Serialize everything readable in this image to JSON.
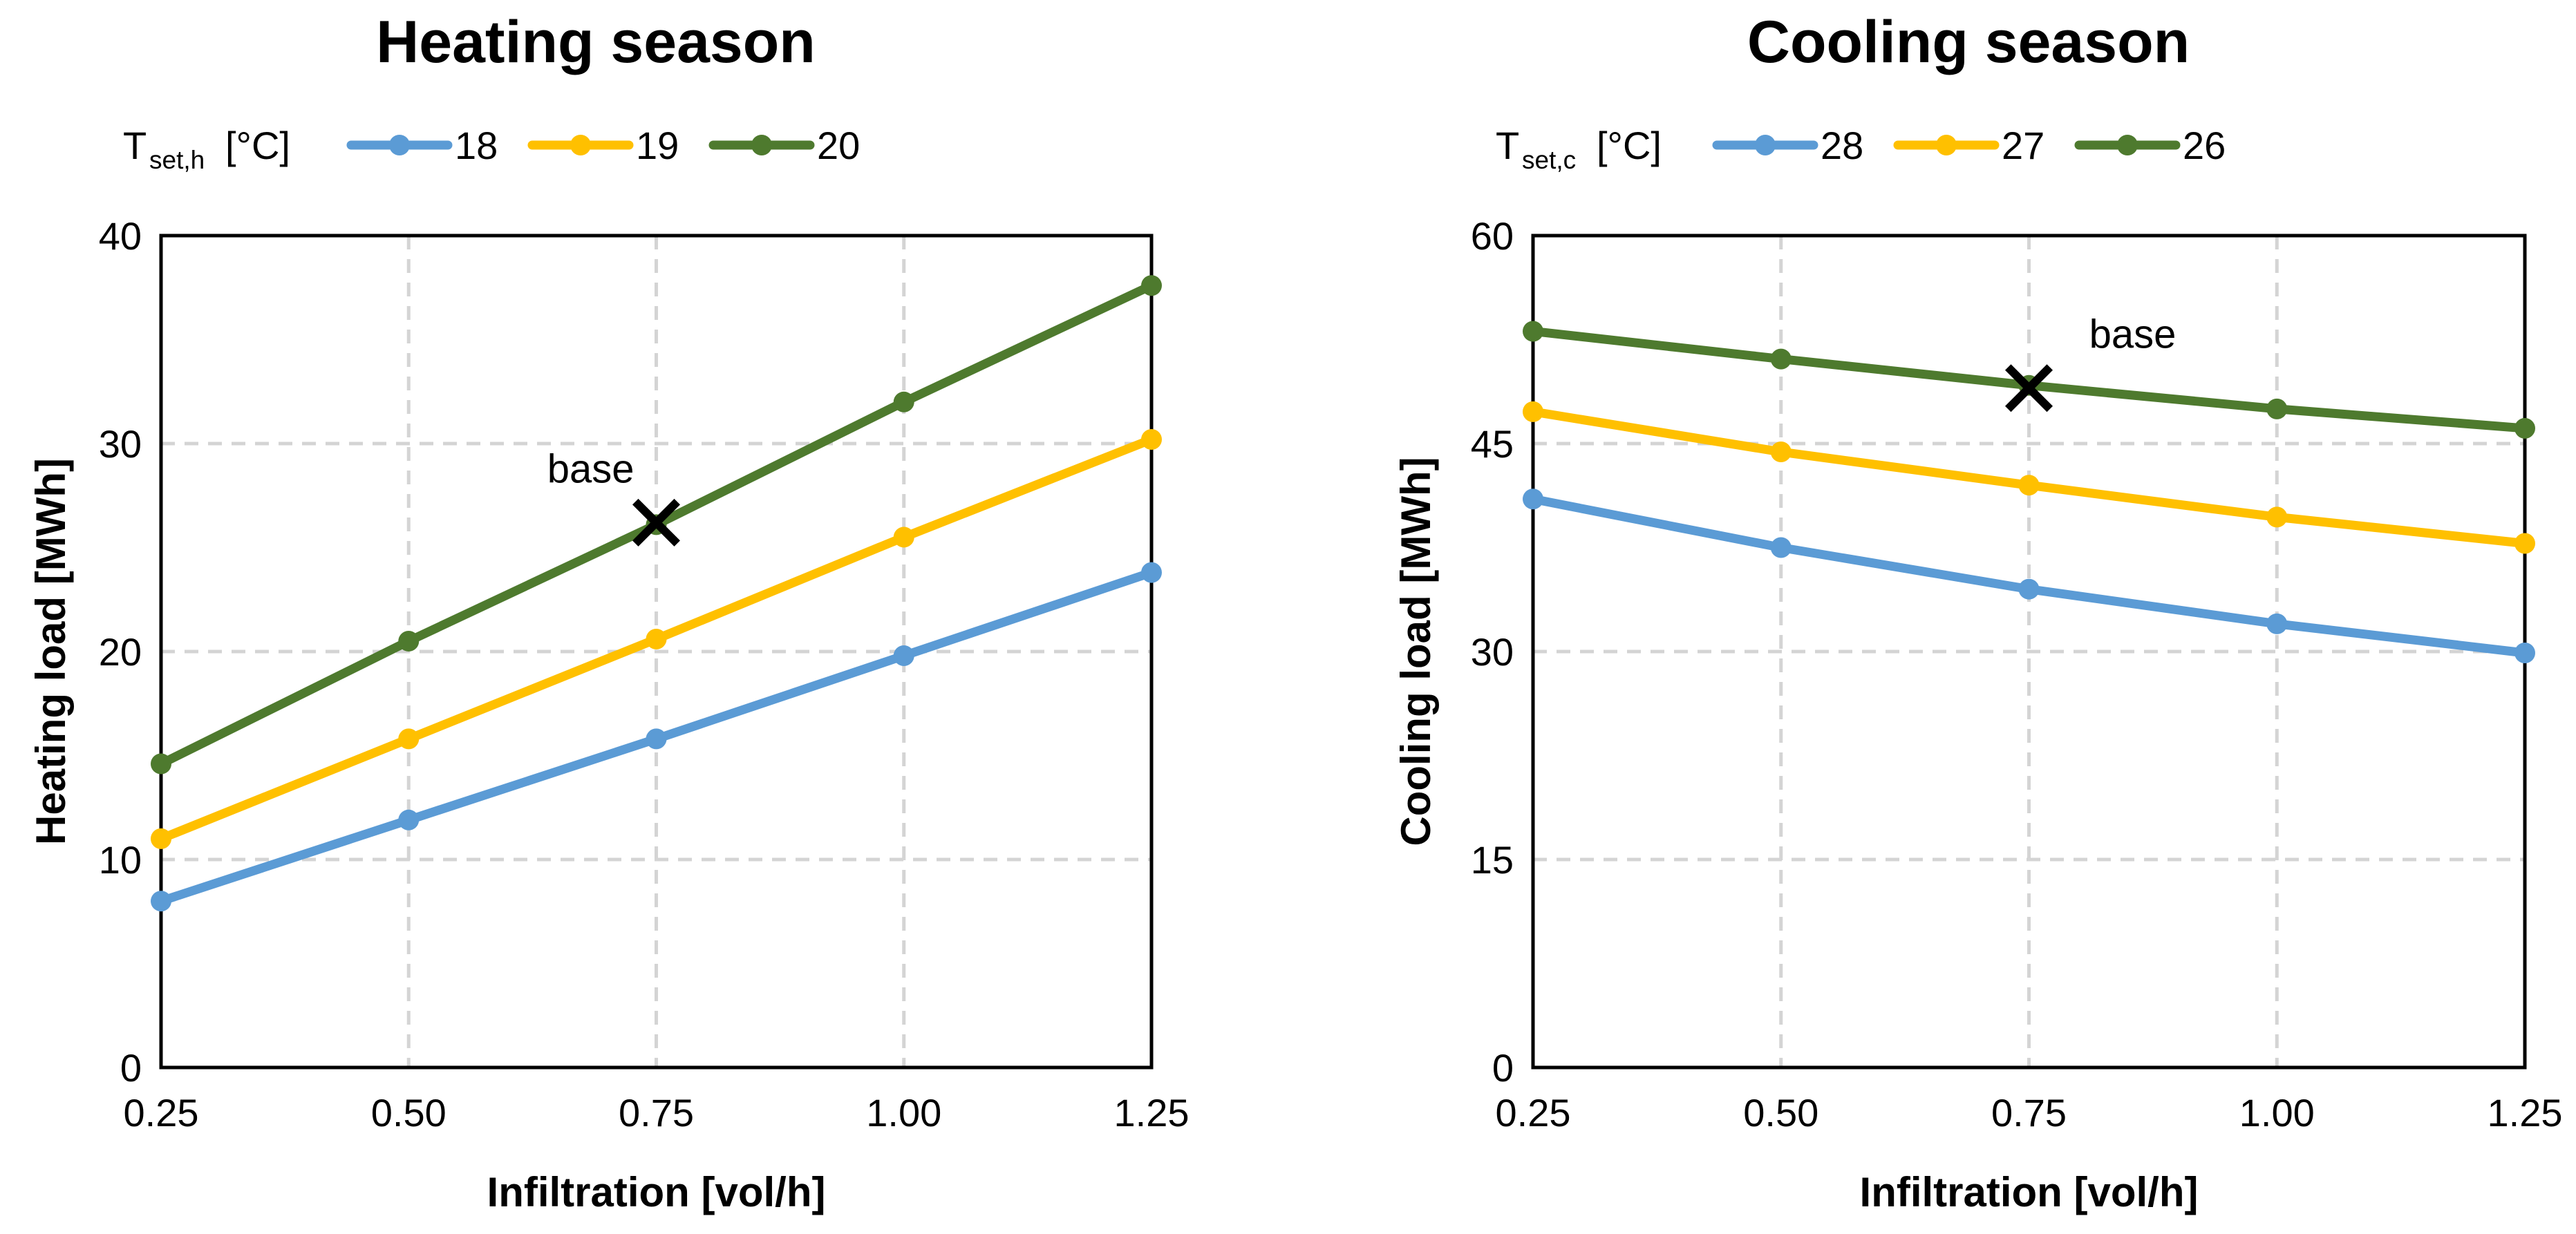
{
  "chart_data": [
    {
      "type": "line",
      "title": "Heating season",
      "xlabel": "Infiltration [vol/h]",
      "ylabel": "Heating load [MWh]",
      "x": [
        0.25,
        0.5,
        0.75,
        1.0,
        1.25
      ],
      "x_tick_labels": [
        "0.25",
        "0.50",
        "0.75",
        "1.00",
        "1.25"
      ],
      "xlim": [
        0.25,
        1.25
      ],
      "ylim": [
        0,
        40
      ],
      "y_ticks": [
        0,
        10,
        20,
        30,
        40
      ],
      "y_tick_labels": [
        "0",
        "10",
        "20",
        "30",
        "40"
      ],
      "grid": true,
      "legend": {
        "position": "top-left",
        "title_main": "T",
        "title_sub": "set,h",
        "title_unit": "[°C]"
      },
      "series": [
        {
          "name": "18",
          "color": "#5b9bd5",
          "values": [
            8.0,
            11.9,
            15.8,
            19.8,
            23.8
          ]
        },
        {
          "name": "19",
          "color": "#ffc000",
          "values": [
            11.0,
            15.8,
            20.6,
            25.5,
            30.2
          ]
        },
        {
          "name": "20",
          "color": "#4e7a2e",
          "values": [
            14.6,
            20.5,
            26.1,
            32.0,
            37.6
          ]
        }
      ],
      "annotations": [
        {
          "label": "base",
          "marker": "cross",
          "x": 0.75,
          "y": 26.2,
          "label_side": "upper-left"
        }
      ]
    },
    {
      "type": "line",
      "title": "Cooling season",
      "xlabel": "Infiltration [vol/h]",
      "ylabel": "Cooling load [MWh]",
      "x": [
        0.25,
        0.5,
        0.75,
        1.0,
        1.25
      ],
      "x_tick_labels": [
        "0.25",
        "0.50",
        "0.75",
        "1.00",
        "1.25"
      ],
      "xlim": [
        0.25,
        1.25
      ],
      "ylim": [
        0,
        60
      ],
      "y_ticks": [
        0,
        15,
        30,
        45,
        60
      ],
      "y_tick_labels": [
        "0",
        "15",
        "30",
        "45",
        "60"
      ],
      "grid": true,
      "legend": {
        "position": "top-left",
        "title_main": "T",
        "title_sub": "set,c",
        "title_unit": "[°C]"
      },
      "series": [
        {
          "name": "28",
          "color": "#5b9bd5",
          "values": [
            41.0,
            37.5,
            34.5,
            32.0,
            29.9
          ]
        },
        {
          "name": "27",
          "color": "#ffc000",
          "values": [
            47.3,
            44.4,
            42.0,
            39.7,
            37.8
          ]
        },
        {
          "name": "26",
          "color": "#4e7a2e",
          "values": [
            53.1,
            51.1,
            49.2,
            47.5,
            46.1
          ]
        }
      ],
      "annotations": [
        {
          "label": "base",
          "marker": "cross",
          "x": 0.75,
          "y": 49.0,
          "label_side": "upper-right"
        }
      ]
    }
  ]
}
